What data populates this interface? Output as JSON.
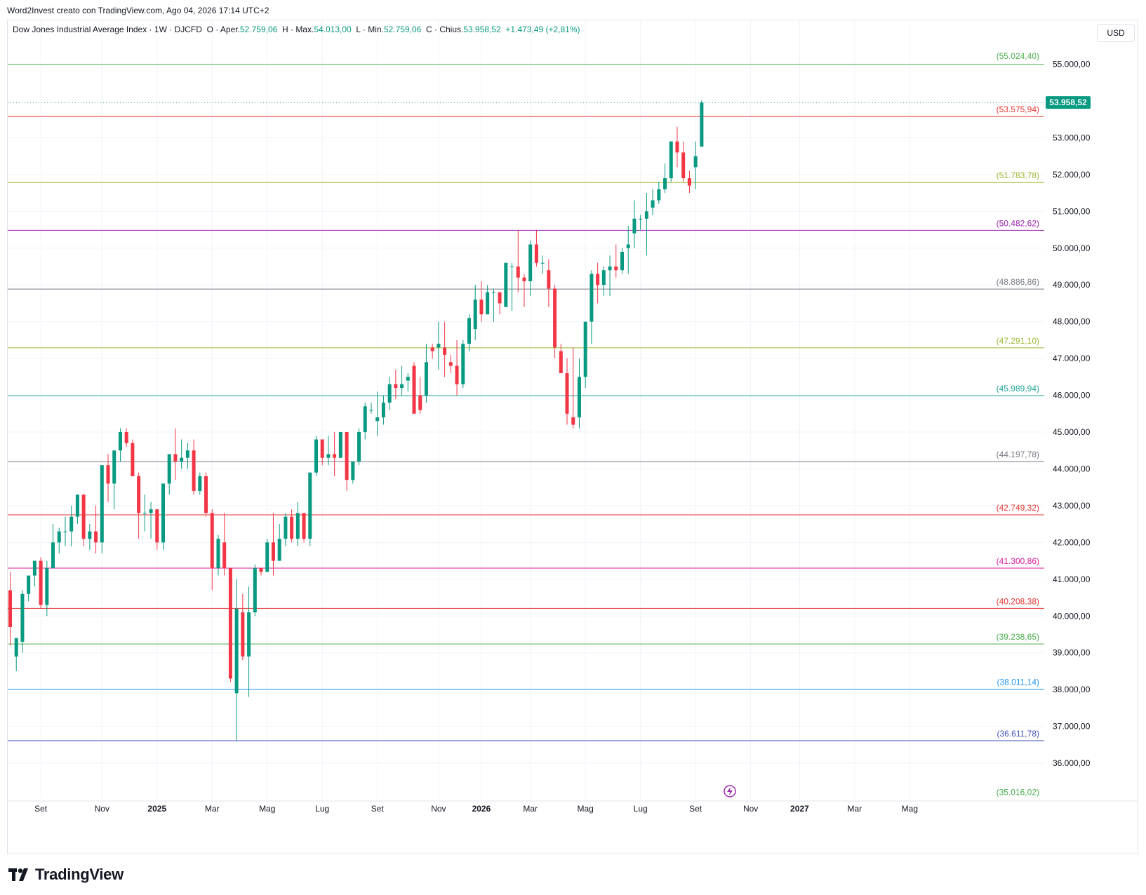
{
  "header": {
    "caption": "Word2Invest creato con TradingView.com, Ago 04, 2026 17:14 UTC+2"
  },
  "legend": {
    "symbol": "Dow Jones Industrial Average Index · 1W · DJCFD",
    "open_label": "O · Aper.",
    "open_value": "52.759,06",
    "high_label": "H · Max.",
    "high_value": "54.013,00",
    "low_label": "L · Min.",
    "low_value": "52.759,06",
    "close_label": "C · Chius.",
    "close_value": "53.958,52",
    "change": "+1.473,49 (+2,81%)"
  },
  "currency": "USD",
  "brand": "TradingView",
  "colors": {
    "up": "#089981",
    "down": "#f23645"
  },
  "chart_data": {
    "type": "candlestick",
    "interval": "1W",
    "last_price": 53958.52,
    "last_price_label": "53.958,52",
    "ylim": [
      35000,
      55800
    ],
    "y_ticks": [
      {
        "v": 36000,
        "label": "36.000,00"
      },
      {
        "v": 37000,
        "label": "37.000,00"
      },
      {
        "v": 38000,
        "label": "38.000,00"
      },
      {
        "v": 39000,
        "label": "39.000,00"
      },
      {
        "v": 40000,
        "label": "40.000,00"
      },
      {
        "v": 41000,
        "label": "41.000,00"
      },
      {
        "v": 42000,
        "label": "42.000,00"
      },
      {
        "v": 43000,
        "label": "43.000,00"
      },
      {
        "v": 44000,
        "label": "44.000,00"
      },
      {
        "v": 45000,
        "label": "45.000,00"
      },
      {
        "v": 46000,
        "label": "46.000,00"
      },
      {
        "v": 47000,
        "label": "47.000,00"
      },
      {
        "v": 48000,
        "label": "48.000,00"
      },
      {
        "v": 49000,
        "label": "49.000,00"
      },
      {
        "v": 50000,
        "label": "50.000,00"
      },
      {
        "v": 51000,
        "label": "51.000,00"
      },
      {
        "v": 52000,
        "label": "52.000,00"
      },
      {
        "v": 53000,
        "label": "53.000,00"
      },
      {
        "v": 55000,
        "label": "55.000,00"
      }
    ],
    "x_ticks": [
      {
        "week": 5,
        "label": "Set",
        "bold": false
      },
      {
        "week": 15,
        "label": "Nov",
        "bold": false
      },
      {
        "week": 24,
        "label": "2025",
        "bold": true
      },
      {
        "week": 33,
        "label": "Mar",
        "bold": false
      },
      {
        "week": 42,
        "label": "Mag",
        "bold": false
      },
      {
        "week": 51,
        "label": "Lug",
        "bold": false
      },
      {
        "week": 60,
        "label": "Set",
        "bold": false
      },
      {
        "week": 70,
        "label": "Nov",
        "bold": false
      },
      {
        "week": 77,
        "label": "2026",
        "bold": true
      },
      {
        "week": 85,
        "label": "Mar",
        "bold": false
      },
      {
        "week": 94,
        "label": "Mag",
        "bold": false
      },
      {
        "week": 103,
        "label": "Lug",
        "bold": false
      },
      {
        "week": 112,
        "label": "Set",
        "bold": false
      },
      {
        "week": 121,
        "label": "Nov",
        "bold": false
      },
      {
        "week": 129,
        "label": "2027",
        "bold": true
      },
      {
        "week": 138,
        "label": "Mar",
        "bold": false
      },
      {
        "week": 147,
        "label": "Mag",
        "bold": false
      }
    ],
    "levels": [
      {
        "value": 55024.4,
        "label": "(55.024,40)",
        "color": "#4caf50",
        "line": false
      },
      {
        "value": 55000.0,
        "label": "",
        "color": "#4caf50",
        "line": true
      },
      {
        "value": 53575.94,
        "label": "(53.575,94)",
        "color": "#e53935",
        "line": true
      },
      {
        "value": 51783.78,
        "label": "(51.783,78)",
        "color": "#9cb830",
        "line": true
      },
      {
        "value": 50482.62,
        "label": "(50.482,62)",
        "color": "#9c27b0",
        "line": true
      },
      {
        "value": 48886.86,
        "label": "(48.886,86)",
        "color": "#787b86",
        "line": true
      },
      {
        "value": 47291.1,
        "label": "(47.291,10)",
        "color": "#9cb830",
        "line": true
      },
      {
        "value": 45989.94,
        "label": "(45.989,94)",
        "color": "#26a69a",
        "line": true
      },
      {
        "value": 44197.78,
        "label": "(44.197,78)",
        "color": "#787b86",
        "line": true
      },
      {
        "value": 42749.32,
        "label": "(42.749,32)",
        "color": "#e53935",
        "line": true
      },
      {
        "value": 41300.86,
        "label": "(41.300,86)",
        "color": "#d81b9a",
        "line": true
      },
      {
        "value": 40208.38,
        "label": "(40.208,38)",
        "color": "#e53935",
        "line": true
      },
      {
        "value": 39238.65,
        "label": "(39.238,65)",
        "color": "#4caf50",
        "line": true
      },
      {
        "value": 38011.14,
        "label": "(38.011,14)",
        "color": "#2196f3",
        "line": true
      },
      {
        "value": 36611.78,
        "label": "(36.611,78)",
        "color": "#3f51b5",
        "line": true
      },
      {
        "value": 35016.02,
        "label": "(35.016,02)",
        "color": "#4caf50",
        "line": false
      }
    ],
    "candles": [
      [
        40700,
        41200,
        39200,
        39700
      ],
      [
        38900,
        39400,
        38500,
        39400
      ],
      [
        39300,
        40700,
        39000,
        40600
      ],
      [
        40600,
        41100,
        40400,
        41100
      ],
      [
        41100,
        41500,
        40800,
        41500
      ],
      [
        41500,
        41600,
        40200,
        40300
      ],
      [
        40300,
        41500,
        40000,
        41300
      ],
      [
        41300,
        42500,
        41300,
        42000
      ],
      [
        42000,
        42400,
        41700,
        42300
      ],
      [
        42300,
        42700,
        41900,
        42300
      ],
      [
        42300,
        43000,
        41900,
        42700
      ],
      [
        42700,
        43300,
        42500,
        43300
      ],
      [
        43300,
        43300,
        41900,
        42100
      ],
      [
        42100,
        42500,
        41800,
        42300
      ],
      [
        42300,
        43000,
        41700,
        42000
      ],
      [
        42000,
        44100,
        41700,
        44100
      ],
      [
        44100,
        44400,
        43100,
        43600
      ],
      [
        43600,
        44500,
        42900,
        44500
      ],
      [
        44500,
        45100,
        44200,
        45000
      ],
      [
        45000,
        45100,
        44600,
        44700
      ],
      [
        44700,
        44800,
        43800,
        43800
      ],
      [
        43800,
        43900,
        42100,
        42800
      ],
      [
        42800,
        43300,
        42300,
        42800
      ],
      [
        42800,
        43100,
        42100,
        42900
      ],
      [
        42900,
        42900,
        41800,
        42000
      ],
      [
        42000,
        43600,
        41800,
        43600
      ],
      [
        43600,
        44400,
        43300,
        44400
      ],
      [
        44400,
        45100,
        43700,
        44200
      ],
      [
        44200,
        44800,
        44000,
        44300
      ],
      [
        44300,
        44700,
        44000,
        44500
      ],
      [
        44500,
        44800,
        43300,
        43400
      ],
      [
        43400,
        43900,
        43300,
        43800
      ],
      [
        43800,
        43900,
        42700,
        42800
      ],
      [
        42800,
        42900,
        40700,
        41300
      ],
      [
        41300,
        42200,
        41100,
        42100
      ],
      [
        42000,
        42800,
        41100,
        41300
      ],
      [
        41300,
        41300,
        38200,
        38300
      ],
      [
        37900,
        41000,
        36600,
        40200
      ],
      [
        40100,
        40600,
        38800,
        38900
      ],
      [
        38900,
        40800,
        37800,
        40100
      ],
      [
        40100,
        41400,
        40000,
        41300
      ],
      [
        41300,
        41300,
        41100,
        41200
      ],
      [
        41200,
        42100,
        41200,
        42000
      ],
      [
        42000,
        42800,
        41100,
        41500
      ],
      [
        41500,
        42500,
        41500,
        42100
      ],
      [
        42100,
        42800,
        41900,
        42700
      ],
      [
        42700,
        42900,
        42000,
        42100
      ],
      [
        42100,
        43100,
        41900,
        42800
      ],
      [
        42800,
        42800,
        42000,
        42100
      ],
      [
        42100,
        43900,
        41900,
        43900
      ],
      [
        43900,
        44900,
        43800,
        44800
      ],
      [
        44800,
        44800,
        44100,
        44300
      ],
      [
        44300,
        44900,
        44100,
        44400
      ],
      [
        44400,
        45000,
        43800,
        44300
      ],
      [
        44300,
        45000,
        44300,
        45000
      ],
      [
        45000,
        45000,
        43400,
        43700
      ],
      [
        43700,
        44200,
        43600,
        44200
      ],
      [
        44200,
        45100,
        44100,
        45000
      ],
      [
        45000,
        45800,
        44800,
        45700
      ],
      [
        45600,
        45800,
        45500,
        45600
      ],
      [
        45300,
        46100,
        44900,
        45400
      ],
      [
        45400,
        46000,
        45200,
        45800
      ],
      [
        45800,
        46500,
        45600,
        46300
      ],
      [
        46300,
        46700,
        45900,
        46200
      ],
      [
        46200,
        46800,
        46000,
        46300
      ],
      [
        46400,
        46600,
        46100,
        46500
      ],
      [
        46800,
        46900,
        45500,
        45500
      ],
      [
        46000,
        46500,
        45500,
        45600
      ],
      [
        46000,
        47400,
        45800,
        46900
      ],
      [
        47300,
        47400,
        47000,
        47200
      ],
      [
        47300,
        48000,
        46700,
        47400
      ],
      [
        47300,
        48000,
        46500,
        47100
      ],
      [
        46900,
        47100,
        46600,
        46800
      ],
      [
        46800,
        47500,
        46000,
        46300
      ],
      [
        46300,
        47500,
        46200,
        47400
      ],
      [
        47400,
        48200,
        47200,
        48100
      ],
      [
        47800,
        49000,
        47500,
        48600
      ],
      [
        48600,
        49100,
        48000,
        48200
      ],
      [
        48200,
        49000,
        48200,
        48800
      ],
      [
        48800,
        48900,
        48000,
        48800
      ],
      [
        48800,
        48800,
        48200,
        48500
      ],
      [
        48400,
        49600,
        48400,
        49600
      ],
      [
        49500,
        49600,
        48300,
        49500
      ],
      [
        49500,
        50500,
        48800,
        49200
      ],
      [
        49200,
        49300,
        48400,
        49100
      ],
      [
        49100,
        50200,
        48700,
        50100
      ],
      [
        50100,
        50500,
        49500,
        49600
      ],
      [
        49600,
        49800,
        49300,
        49600
      ],
      [
        49400,
        49700,
        48400,
        48900
      ],
      [
        48900,
        49000,
        47000,
        47300
      ],
      [
        47200,
        47400,
        46600,
        46600
      ],
      [
        46600,
        47000,
        45200,
        45500
      ],
      [
        45400,
        47300,
        45100,
        45200
      ],
      [
        45400,
        47000,
        45100,
        46500
      ],
      [
        46500,
        48000,
        46200,
        48000
      ],
      [
        48000,
        49400,
        47400,
        49300
      ],
      [
        49300,
        49600,
        48500,
        49000
      ],
      [
        49000,
        49500,
        48700,
        49400
      ],
      [
        49400,
        49800,
        48700,
        49500
      ],
      [
        49500,
        50100,
        49200,
        49400
      ],
      [
        49400,
        50000,
        49300,
        49900
      ],
      [
        50000,
        50600,
        49300,
        50100
      ],
      [
        50400,
        51300,
        50000,
        50800
      ],
      [
        50800,
        50900,
        50500,
        50800
      ],
      [
        50800,
        51500,
        49800,
        51000
      ],
      [
        51100,
        51600,
        50900,
        51300
      ],
      [
        51300,
        51800,
        51200,
        51600
      ],
      [
        51600,
        52300,
        51500,
        51900
      ],
      [
        51900,
        52900,
        51800,
        52900
      ],
      [
        52900,
        53300,
        52200,
        52600
      ],
      [
        52600,
        52900,
        51800,
        51900
      ],
      [
        51900,
        52100,
        51500,
        51700
      ],
      [
        52200,
        52900,
        51600,
        52500
      ],
      [
        52759.06,
        54013.0,
        52759.06,
        53958.52
      ]
    ]
  }
}
